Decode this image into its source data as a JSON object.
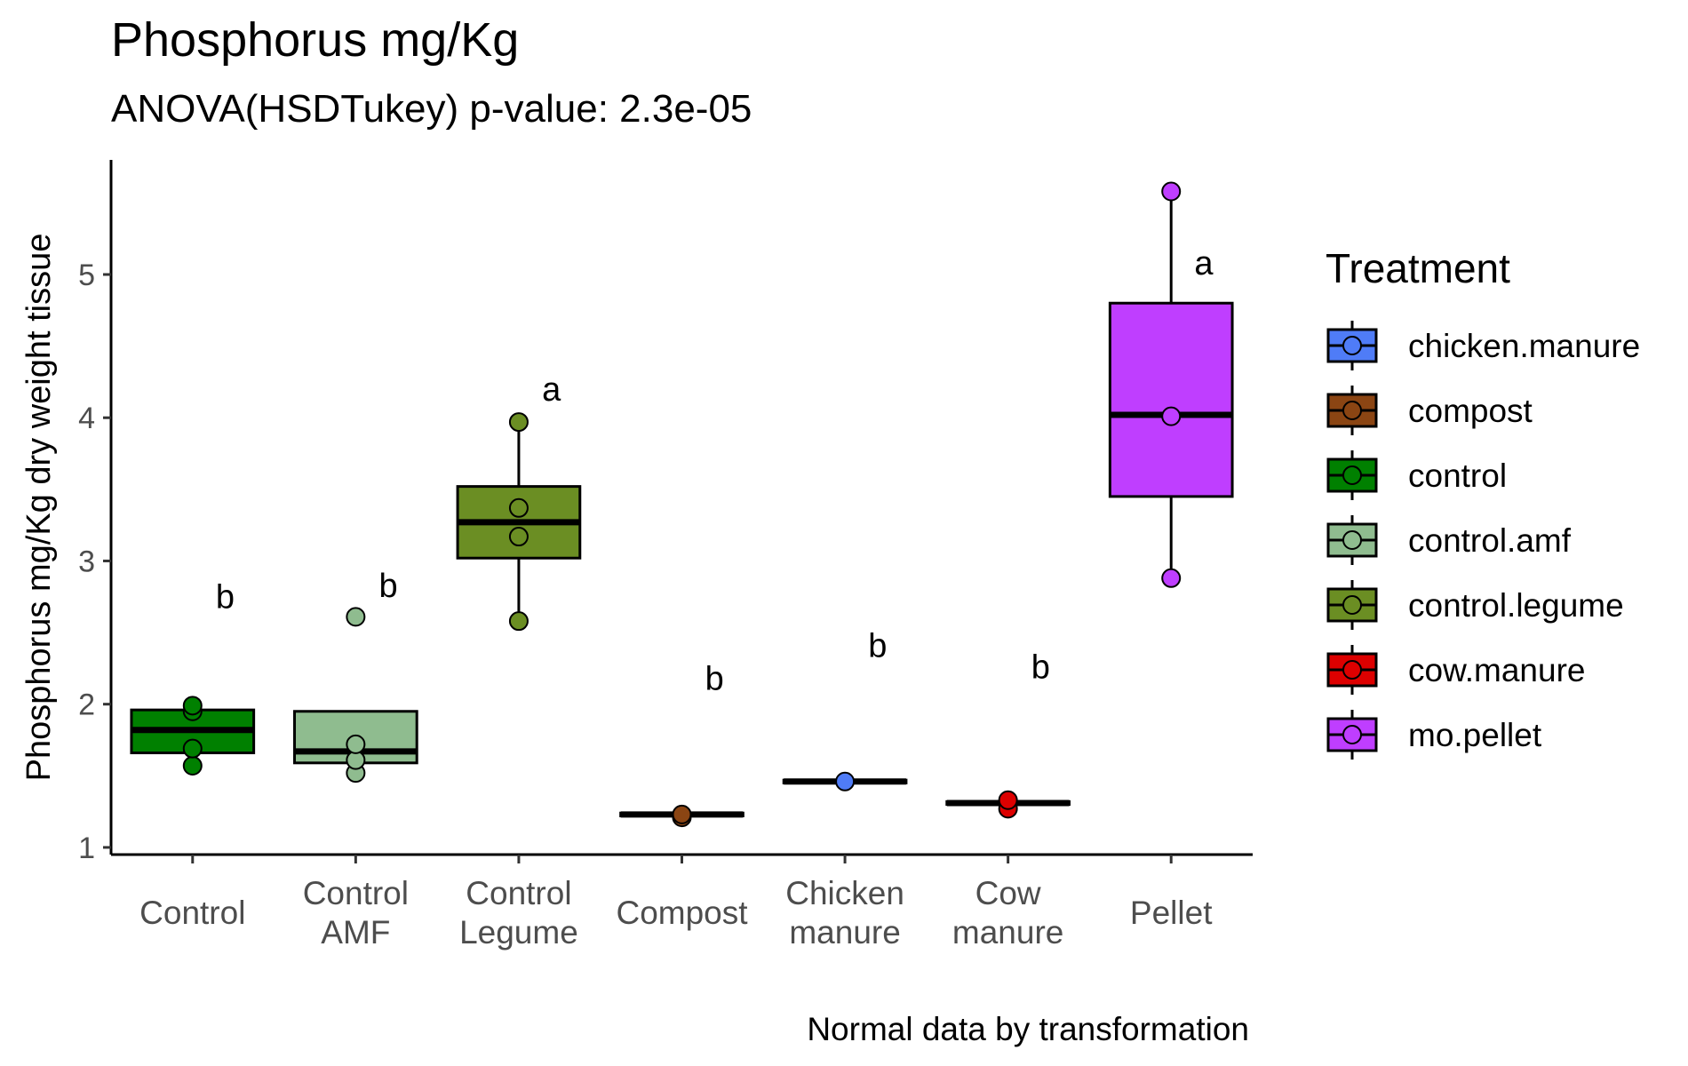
{
  "chart_data": {
    "type": "box",
    "title": "Phosphorus mg/Kg",
    "subtitle": "ANOVA(HSDTukey) p-value: 2.3e-05",
    "ylabel": "Phosphorus mg/Kg dry weight tissue",
    "xlabel": "",
    "caption": "Normal data by transformation",
    "ylim": [
      0.95,
      5.8
    ],
    "yticks": [
      1,
      2,
      3,
      4,
      5
    ],
    "grid": false,
    "legend": {
      "title": "Treatment",
      "position": "right",
      "entries": [
        {
          "label": "chicken.manure",
          "color": "#4f7cf7"
        },
        {
          "label": "compost",
          "color": "#8b4513"
        },
        {
          "label": "control",
          "color": "#008000"
        },
        {
          "label": "control.amf",
          "color": "#8fbc8f"
        },
        {
          "label": "control.legume",
          "color": "#6b8e23"
        },
        {
          "label": "cow.manure",
          "color": "#dd0000"
        },
        {
          "label": "mo.pellet",
          "color": "#bf3eff"
        }
      ]
    },
    "categories": [
      {
        "label": [
          "Control"
        ],
        "treatment": "control",
        "color": "#008000",
        "q1": 1.66,
        "median": 1.82,
        "q3": 1.96,
        "whisker_low": 1.66,
        "whisker_high": 1.96,
        "points": [
          1.57,
          1.69,
          1.95,
          1.99
        ],
        "letter": "b",
        "letter_y": 2.67
      },
      {
        "label": [
          "Control",
          "AMF"
        ],
        "treatment": "control.amf",
        "color": "#8fbc8f",
        "q1": 1.59,
        "median": 1.67,
        "q3": 1.95,
        "whisker_low": 1.59,
        "whisker_high": 1.95,
        "points": [
          1.52,
          1.61,
          1.72,
          2.61
        ],
        "letter": "b",
        "letter_y": 2.75
      },
      {
        "label": [
          "Control",
          "Legume"
        ],
        "treatment": "control.legume",
        "color": "#6b8e23",
        "q1": 3.02,
        "median": 3.27,
        "q3": 3.52,
        "whisker_low": 2.58,
        "whisker_high": 3.97,
        "points": [
          2.58,
          3.17,
          3.37,
          3.97
        ],
        "letter": "a",
        "letter_y": 4.12
      },
      {
        "label": [
          "Compost"
        ],
        "treatment": "compost",
        "color": "#8b4513",
        "q1": 1.22,
        "median": 1.23,
        "q3": 1.24,
        "whisker_low": 1.22,
        "whisker_high": 1.24,
        "points": [
          1.21,
          1.23
        ],
        "letter": "b",
        "letter_y": 2.1
      },
      {
        "label": [
          "Chicken",
          "manure"
        ],
        "treatment": "chicken.manure",
        "color": "#4f7cf7",
        "q1": 1.45,
        "median": 1.46,
        "q3": 1.47,
        "whisker_low": 1.45,
        "whisker_high": 1.47,
        "points": [
          1.46
        ],
        "letter": "b",
        "letter_y": 2.33
      },
      {
        "label": [
          "Cow",
          "manure"
        ],
        "treatment": "cow.manure",
        "color": "#dd0000",
        "q1": 1.3,
        "median": 1.31,
        "q3": 1.32,
        "whisker_low": 1.3,
        "whisker_high": 1.32,
        "points": [
          1.27,
          1.33
        ],
        "letter": "b",
        "letter_y": 2.18
      },
      {
        "label": [
          "Pellet"
        ],
        "treatment": "mo.pellet",
        "color": "#bf3eff",
        "q1": 3.45,
        "median": 4.02,
        "q3": 4.8,
        "whisker_low": 2.88,
        "whisker_high": 5.58,
        "points": [
          2.88,
          4.01,
          5.58
        ],
        "letter": "a",
        "letter_y": 5.0
      }
    ]
  }
}
